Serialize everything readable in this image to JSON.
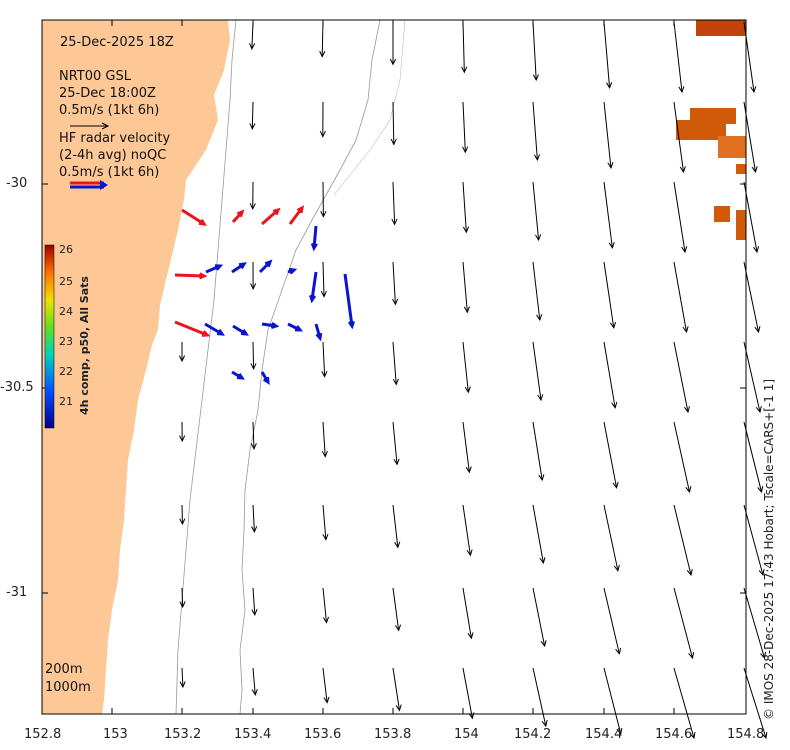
{
  "header": {
    "date_time": "25-Dec-2025 18Z",
    "product": "NRT00 GSL",
    "product_time": "25-Dec 18:00Z",
    "model_scale": "0.5m/s (1kt 6h)",
    "radar_title": "HF radar velocity",
    "radar_subtitle": "(2-4h avg) noQC",
    "radar_scale": "0.5m/s (1kt 6h)"
  },
  "colorbar": {
    "label": "4h comp, p50, All Sats",
    "ticks": [
      "26",
      "25",
      "24",
      "23",
      "22",
      "21"
    ]
  },
  "axes": {
    "x_ticks": [
      "152.8",
      "153",
      "153.2",
      "153.4",
      "153.6",
      "153.8",
      "154",
      "154.2",
      "154.4",
      "154.6",
      "154.8"
    ],
    "y_ticks": [
      "-30",
      "-30.5",
      "-31"
    ]
  },
  "isobaths": {
    "shallow": "200m",
    "deep": "1000m"
  },
  "credit": "© IMOS 28-Dec-2025 17:43 Hobart; Tscale=CARS+[-1 1]",
  "colors": {
    "land": "#fdc896",
    "model_arrow": "#000000",
    "radar_red": "#e8141e",
    "radar_blue": "#0a14d2",
    "sst_patch": "#d05a0a"
  }
}
